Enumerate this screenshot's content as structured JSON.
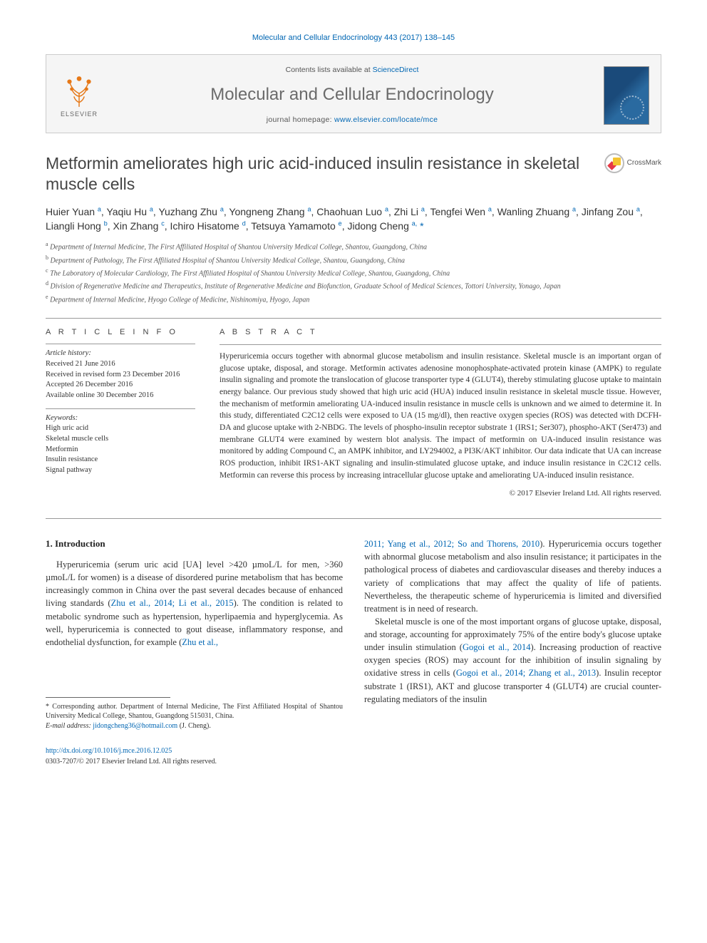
{
  "citation": "Molecular and Cellular Endocrinology 443 (2017) 138–145",
  "masthead": {
    "contents_prefix": "Contents lists available at ",
    "contents_link": "ScienceDirect",
    "journal": "Molecular and Cellular Endocrinology",
    "homepage_prefix": "journal homepage: ",
    "homepage_url": "www.elsevier.com/locate/mce",
    "publisher_logo_label": "ELSEVIER"
  },
  "crossmark_label": "CrossMark",
  "title": "Metformin ameliorates high uric acid-induced insulin resistance in skeletal muscle cells",
  "authors_html": "Huier Yuan <sup>a</sup>, Yaqiu Hu <sup>a</sup>, Yuzhang Zhu <sup>a</sup>, Yongneng Zhang <sup>a</sup>, Chaohuan Luo <sup>a</sup>, Zhi Li <sup>a</sup>, Tengfei Wen <sup>a</sup>, Wanling Zhuang <sup>a</sup>, Jinfang Zou <sup>a</sup>, Liangli Hong <sup>b</sup>, Xin Zhang <sup>c</sup>, Ichiro Hisatome <sup>d</sup>, Tetsuya Yamamoto <sup>e</sup>, Jidong Cheng <sup>a,</sup><span class='corr'> *</span>",
  "affiliations": [
    {
      "sup": "a",
      "text": "Department of Internal Medicine, The First Affiliated Hospital of Shantou University Medical College, Shantou, Guangdong, China"
    },
    {
      "sup": "b",
      "text": "Department of Pathology, The First Affiliated Hospital of Shantou University Medical College, Shantou, Guangdong, China"
    },
    {
      "sup": "c",
      "text": "The Laboratory of Molecular Cardiology, The First Affiliated Hospital of Shantou University Medical College, Shantou, Guangdong, China"
    },
    {
      "sup": "d",
      "text": "Division of Regenerative Medicine and Therapeutics, Institute of Regenerative Medicine and Biofunction, Graduate School of Medical Sciences, Tottori University, Yonago, Japan"
    },
    {
      "sup": "e",
      "text": "Department of Internal Medicine, Hyogo College of Medicine, Nishinomiya, Hyogo, Japan"
    }
  ],
  "article_info_head": "A R T I C L E  I N F O",
  "abstract_head": "A B S T R A C T",
  "history": {
    "label": "Article history:",
    "received": "Received 21 June 2016",
    "revised": "Received in revised form 23 December 2016",
    "accepted": "Accepted 26 December 2016",
    "online": "Available online 30 December 2016"
  },
  "keywords": {
    "label": "Keywords:",
    "items": [
      "High uric acid",
      "Skeletal muscle cells",
      "Metformin",
      "Insulin resistance",
      "Signal pathway"
    ]
  },
  "abstract": "Hyperuricemia occurs together with abnormal glucose metabolism and insulin resistance. Skeletal muscle is an important organ of glucose uptake, disposal, and storage. Metformin activates adenosine monophosphate-activated protein kinase (AMPK) to regulate insulin signaling and promote the translocation of glucose transporter type 4 (GLUT4), thereby stimulating glucose uptake to maintain energy balance. Our previous study showed that high uric acid (HUA) induced insulin resistance in skeletal muscle tissue. However, the mechanism of metformin ameliorating UA-induced insulin resistance in muscle cells is unknown and we aimed to determine it. In this study, differentiated C2C12 cells were exposed to UA (15 mg/dl), then reactive oxygen species (ROS) was detected with DCFH-DA and glucose uptake with 2-NBDG. The levels of phospho-insulin receptor substrate 1 (IRS1; Ser307), phospho-AKT (Ser473) and membrane GLUT4 were examined by western blot analysis. The impact of metformin on UA-induced insulin resistance was monitored by adding Compound C, an AMPK inhibitor, and LY294002, a PI3K/AKT inhibitor. Our data indicate that UA can increase ROS production, inhibit IRS1-AKT signaling and insulin-stimulated glucose uptake, and induce insulin resistance in C2C12 cells. Metformin can reverse this process by increasing intracellular glucose uptake and ameliorating UA-induced insulin resistance.",
  "copyright": "© 2017 Elsevier Ireland Ltd. All rights reserved.",
  "intro_head": "1. Introduction",
  "intro_para1_a": "Hyperuricemia (serum uric acid [UA] level >420 µmoL/L for men, >360 µmoL/L for women) is a disease of disordered purine metabolism that has become increasingly common in China over the past several decades because of enhanced living standards (",
  "intro_para1_ref1": "Zhu et al., 2014; Li et al., 2015",
  "intro_para1_b": "). The condition is related to metabolic syndrome such as hypertension, hyperlipaemia and hyperglycemia. As well, hyperuricemia is connected to gout disease, inflammatory response, and endothelial dysfunction, for example (",
  "intro_para1_ref2": "Zhu et al.,",
  "intro_para2_ref1": "2011; Yang et al., 2012; So and Thorens, 2010",
  "intro_para2_a": "). Hyperuricemia occurs together with abnormal glucose metabolism and also insulin resistance; it participates in the pathological process of diabetes and cardiovascular diseases and thereby induces a variety of complications that may affect the quality of life of patients. Nevertheless, the therapeutic scheme of hyperuricemia is limited and diversified treatment is in need of research.",
  "intro_para3_a": "Skeletal muscle is one of the most important organs of glucose uptake, disposal, and storage, accounting for approximately 75% of the entire body's glucose uptake under insulin stimulation (",
  "intro_para3_ref1": "Gogoi et al., 2014",
  "intro_para3_b": "). Increasing production of reactive oxygen species (ROS) may account for the inhibition of insulin signaling by oxidative stress in cells (",
  "intro_para3_ref2": "Gogoi et al., 2014; Zhang et al., 2013",
  "intro_para3_c": "). Insulin receptor substrate 1 (IRS1), AKT and glucose transporter 4 (GLUT4) are crucial counter-regulating mediators of the insulin",
  "footnote": {
    "corr": "* Corresponding author. Department of Internal Medicine, The First Affiliated Hospital of Shantou University Medical College, Shantou, Guangdong 515031, China.",
    "email_label": "E-mail address: ",
    "email": "jidongcheng36@hotmail.com",
    "email_suffix": " (J. Cheng)."
  },
  "footer": {
    "doi": "http://dx.doi.org/10.1016/j.mce.2016.12.025",
    "issn_line": "0303-7207/© 2017 Elsevier Ireland Ltd. All rights reserved."
  }
}
